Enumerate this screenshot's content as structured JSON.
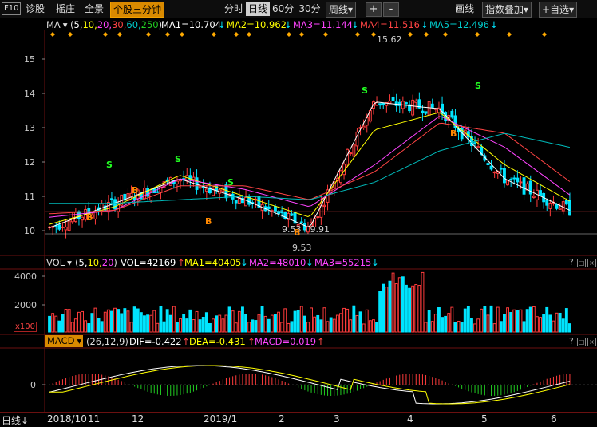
{
  "toolbar": {
    "f10": "F10",
    "items": [
      "诊股",
      "摇庄",
      "全景"
    ],
    "active": "个股三分钟",
    "periods": [
      "分时",
      "日线",
      "60分",
      "30分"
    ],
    "period_active": "日线",
    "week": "周线",
    "week_arrow": "▾",
    "plus": "+",
    "minus": "-",
    "draw": "画线",
    "overlay": "指数叠加",
    "fav": "+自选",
    "overlay_arrow": "▾",
    "fav_arrow": "▾"
  },
  "ma_line": {
    "name": "MA",
    "params_prefix": "(",
    "p1": "5,",
    "p2": "10,",
    "p3": "20,",
    "p4": "30,",
    "p5": "60,",
    "p6": "250",
    "params_suffix": ")",
    "ma1": "MA1=10.704",
    "ma2": "MA2=10.962",
    "ma3": "MA3=11.144",
    "ma4": "MA4=11.516",
    "ma5": "MA5=12.496",
    "ma1_arrow": "↓",
    "ma2_arrow": "↓",
    "ma3_arrow": "↓",
    "ma4_arrow": "↓",
    "ma5_arrow": "↓"
  },
  "vol_line": {
    "name": "VOL",
    "params_prefix": "(",
    "p1": "5,",
    "p2": "10,",
    "p3": "20",
    "params_suffix": ")",
    "vol": "VOL=42169",
    "ma1": "MA1=40405",
    "ma2": "MA2=48010",
    "ma3": "MA3=55215",
    "vol_arrow": "↑",
    "ma1_arrow": "↓",
    "ma2_arrow": "↓",
    "ma3_arrow": "↓"
  },
  "macd_line": {
    "name": "MACD",
    "params": "(26,12,9)",
    "dif": "DIF=-0.422",
    "dea": "DEA=-0.431",
    "macd": "MACD=0.019",
    "dif_arrow": "↑",
    "dea_arrow": "↑",
    "macd_arrow": "↑"
  },
  "price_axis": [
    "15",
    "14",
    "13",
    "12",
    "11",
    "10"
  ],
  "vol_axis": [
    "4000",
    "2000",
    "x100"
  ],
  "macd_axis": [
    "0"
  ],
  "annotations": {
    "high": "15.62",
    "low": "9.53",
    "range": "9.53 - 9.91"
  },
  "signals": {
    "sell": "S",
    "buy": "B"
  },
  "panel_controls": {
    "q": "?",
    "box": "□",
    "close": "×"
  },
  "bottom": {
    "mode": "日线",
    "mode_arrow": "↓",
    "dates": [
      "2018/10",
      "11",
      "12",
      "2019/1",
      "2",
      "3",
      "4",
      "5",
      "6"
    ]
  },
  "colors": {
    "up": "#ff3c3c",
    "down": "#00e5ff",
    "ma1": "#ffffff",
    "ma2": "#ffff00",
    "ma3": "#ff44ff",
    "ma4": "#ff4444",
    "ma5": "#00bbbb",
    "accent": "#d98a00",
    "border": "#6b1010"
  },
  "chart_data": {
    "type": "line",
    "title": "",
    "xlabel": "",
    "ylabel": "",
    "x": [
      "2018/10",
      "11",
      "12",
      "2019/1",
      "2",
      "3",
      "4",
      "5",
      "6"
    ],
    "ylim": [
      9.5,
      15.8
    ],
    "series": [
      {
        "name": "MA1",
        "values": [
          10.2,
          10.9,
          11.6,
          11.0,
          10.2,
          13.8,
          13.6,
          11.6,
          10.7
        ]
      },
      {
        "name": "MA2",
        "values": [
          10.3,
          10.8,
          11.7,
          11.1,
          10.5,
          13.0,
          13.5,
          12.0,
          10.96
        ]
      },
      {
        "name": "MA3",
        "values": [
          10.5,
          10.7,
          11.6,
          11.3,
          10.8,
          12.0,
          13.4,
          12.5,
          11.14
        ]
      },
      {
        "name": "MA4",
        "values": [
          10.6,
          10.7,
          11.4,
          11.4,
          11.0,
          11.8,
          13.2,
          12.9,
          11.52
        ]
      },
      {
        "name": "MA5",
        "values": [
          10.9,
          10.9,
          11.0,
          11.1,
          11.0,
          11.5,
          12.4,
          12.9,
          12.5
        ]
      }
    ]
  }
}
